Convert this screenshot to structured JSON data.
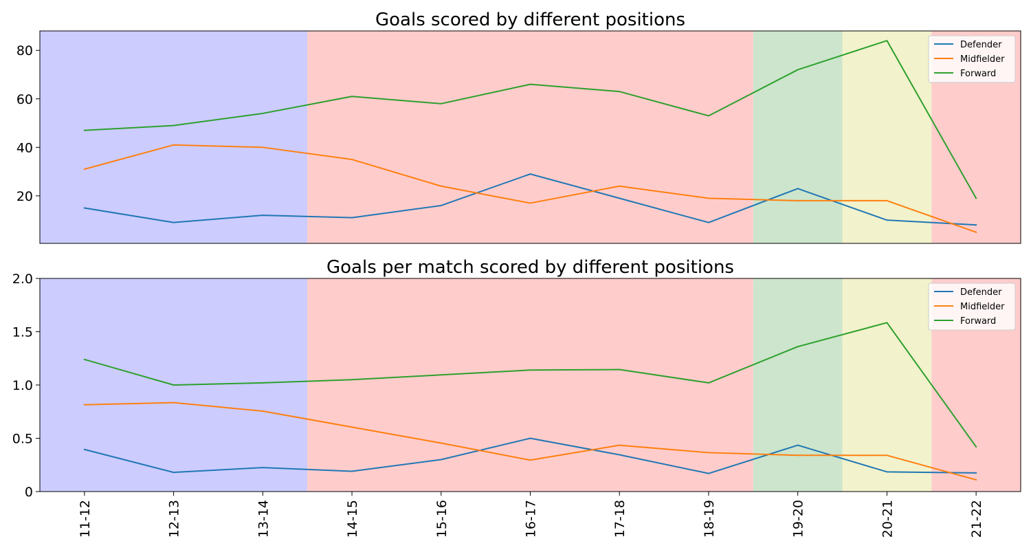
{
  "chart_data": [
    {
      "type": "line",
      "title": "Goals scored by different positions",
      "categories": [
        "11-12",
        "12-13",
        "13-14",
        "14-15",
        "15-16",
        "16-17",
        "17-18",
        "18-19",
        "19-20",
        "20-21",
        "21-22"
      ],
      "series": [
        {
          "name": "Defender",
          "color": "#1f77b4",
          "values": [
            15,
            9,
            12,
            11,
            16,
            29,
            19,
            9,
            23,
            10,
            8
          ]
        },
        {
          "name": "Midfielder",
          "color": "#ff7f0e",
          "values": [
            31,
            41,
            40,
            35,
            24,
            17,
            24,
            19,
            18,
            18,
            5
          ]
        },
        {
          "name": "Forward",
          "color": "#2ca02c",
          "values": [
            47,
            49,
            54,
            61,
            58,
            66,
            63,
            53,
            72,
            84,
            19
          ]
        }
      ],
      "ylim": [
        0.4,
        88
      ],
      "yticks": [
        {
          "value": 20,
          "label": "20"
        },
        {
          "value": 40,
          "label": "40"
        },
        {
          "value": 60,
          "label": "60"
        },
        {
          "value": 80,
          "label": "80"
        }
      ],
      "legend_position": "top-right",
      "grid": false,
      "background_bands": [
        {
          "from": -0.5,
          "to": 2.5,
          "color": "#ccccff"
        },
        {
          "from": 2.5,
          "to": 7.5,
          "color": "#ffcccc"
        },
        {
          "from": 7.5,
          "to": 8.5,
          "color": "#cce5cc"
        },
        {
          "from": 8.5,
          "to": 9.5,
          "color": "#f2f2cc"
        },
        {
          "from": 9.5,
          "to": 10.5,
          "color": "#ffcccc"
        }
      ]
    },
    {
      "type": "line",
      "title": "Goals per match scored by different positions",
      "categories": [
        "11-12",
        "12-13",
        "13-14",
        "14-15",
        "15-16",
        "16-17",
        "17-18",
        "18-19",
        "19-20",
        "20-21",
        "21-22"
      ],
      "series": [
        {
          "name": "Defender",
          "color": "#1f77b4",
          "values": [
            0.395,
            0.18,
            0.225,
            0.19,
            0.3,
            0.5,
            0.345,
            0.17,
            0.435,
            0.185,
            0.175
          ]
        },
        {
          "name": "Midfielder",
          "color": "#ff7f0e",
          "values": [
            0.815,
            0.835,
            0.755,
            0.605,
            0.455,
            0.295,
            0.435,
            0.365,
            0.34,
            0.34,
            0.11
          ]
        },
        {
          "name": "Forward",
          "color": "#2ca02c",
          "values": [
            1.24,
            1.0,
            1.02,
            1.05,
            1.095,
            1.14,
            1.145,
            1.02,
            1.36,
            1.585,
            0.42
          ]
        }
      ],
      "ylim": [
        0,
        2.0
      ],
      "yticks": [
        {
          "value": 0,
          "label": "0"
        },
        {
          "value": 0.5,
          "label": "0.5"
        },
        {
          "value": 1.0,
          "label": "1.0"
        },
        {
          "value": 1.5,
          "label": "1.5"
        },
        {
          "value": 2.0,
          "label": "2.0"
        }
      ],
      "legend_position": "top-right",
      "grid": false,
      "background_bands": [
        {
          "from": -0.5,
          "to": 2.5,
          "color": "#ccccff"
        },
        {
          "from": 2.5,
          "to": 7.5,
          "color": "#ffcccc"
        },
        {
          "from": 7.5,
          "to": 8.5,
          "color": "#cce5cc"
        },
        {
          "from": 8.5,
          "to": 9.5,
          "color": "#f2f2cc"
        },
        {
          "from": 9.5,
          "to": 10.5,
          "color": "#ffcccc"
        }
      ]
    }
  ]
}
